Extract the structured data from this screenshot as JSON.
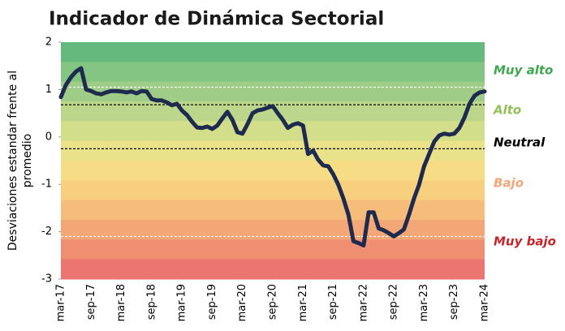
{
  "chart_data": {
    "type": "line",
    "title": "Indicador de Dinámica Sectorial",
    "ylabel": [
      "Desviaciones estandar frente al",
      "promedio"
    ],
    "categories": [
      "mar-17",
      null,
      null,
      null,
      null,
      null,
      "sep-17",
      null,
      null,
      null,
      null,
      null,
      "mar-18",
      null,
      null,
      null,
      null,
      null,
      "sep-18",
      null,
      null,
      null,
      null,
      null,
      "mar-19",
      null,
      null,
      null,
      null,
      null,
      "sep-19",
      null,
      null,
      null,
      null,
      null,
      "mar-20",
      null,
      null,
      null,
      null,
      null,
      "sep-20",
      null,
      null,
      null,
      null,
      null,
      "mar-21",
      null,
      null,
      null,
      null,
      null,
      "sep-21",
      null,
      null,
      null,
      null,
      null,
      "mar-22",
      null,
      null,
      null,
      null,
      null,
      "sep-22",
      null,
      null,
      null,
      null,
      null,
      "mar-23",
      null,
      null,
      null,
      null,
      null,
      "sep-23",
      null,
      null,
      null,
      null,
      null,
      "mar-24"
    ],
    "series": [
      {
        "color": "#1f2a4f",
        "values": [
          0.84,
          1.1,
          1.26,
          1.38,
          1.45,
          1.0,
          0.97,
          0.92,
          0.9,
          0.94,
          0.97,
          0.97,
          0.96,
          0.94,
          0.96,
          0.92,
          0.97,
          0.96,
          0.8,
          0.77,
          0.77,
          0.73,
          0.67,
          0.7,
          0.56,
          0.46,
          0.32,
          0.2,
          0.19,
          0.22,
          0.17,
          0.24,
          0.39,
          0.53,
          0.36,
          0.1,
          0.07,
          0.27,
          0.5,
          0.56,
          0.58,
          0.62,
          0.65,
          0.5,
          0.36,
          0.19,
          0.26,
          0.29,
          0.24,
          -0.36,
          -0.29,
          -0.48,
          -0.6,
          -0.62,
          -0.79,
          -1.01,
          -1.3,
          -1.64,
          -2.2,
          -2.24,
          -2.29,
          -1.59,
          -1.59,
          -1.93,
          -1.97,
          -2.03,
          -2.1,
          -2.03,
          -1.95,
          -1.64,
          -1.3,
          -1.01,
          -0.62,
          -0.36,
          -0.1,
          0.03,
          0.07,
          0.05,
          0.07,
          0.19,
          0.41,
          0.7,
          0.87,
          0.94,
          0.96
        ]
      }
    ],
    "ylim": [
      -3,
      2
    ],
    "yticks": [
      2,
      1,
      0,
      -1,
      -2,
      -3
    ],
    "background_bands": [
      "#66b97c",
      "#84c584",
      "#9fcd88",
      "#bcd78b",
      "#d3de8b",
      "#e9e28a",
      "#f6dc85",
      "#f8cf7e",
      "#f6bd7a",
      "#f3a676",
      "#f08e72",
      "#ec7471"
    ],
    "reference_lines": [
      {
        "value": 1.05,
        "color": "#ffffff"
      },
      {
        "value": 0.68,
        "color": "#000000"
      },
      {
        "value": -0.25,
        "color": "#000000"
      },
      {
        "value": -2.1,
        "color": "#ffffff"
      }
    ],
    "annotations": [
      {
        "text": "Muy alto",
        "color": "#3fa84f"
      },
      {
        "text": "Alto",
        "color": "#92c057"
      },
      {
        "text": "Neutral",
        "color": "#000000"
      },
      {
        "text": "Bajo",
        "color": "#f3a676"
      },
      {
        "text": "Muy bajo",
        "color": "#c6252b"
      }
    ]
  }
}
